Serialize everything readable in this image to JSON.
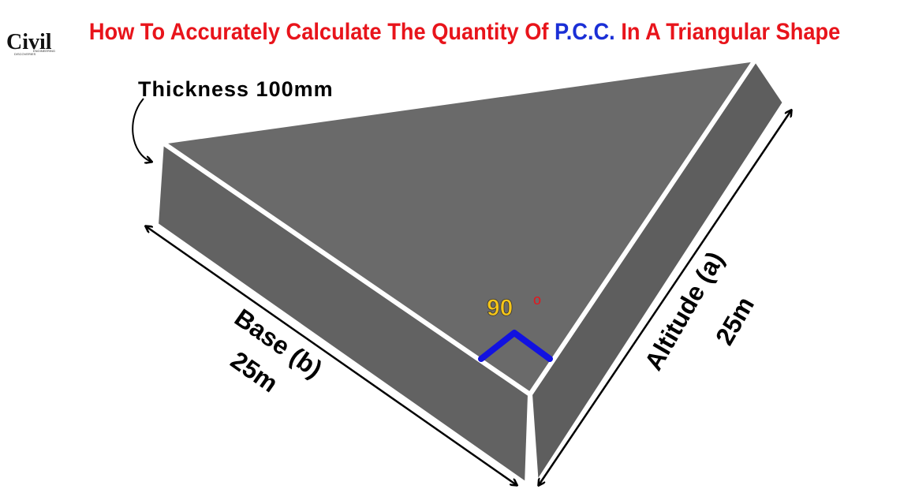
{
  "header": {
    "logo": {
      "main": "Civil",
      "line1": "ENGINEERING",
      "line2": "DISCOVERIES"
    },
    "title": {
      "before": "How To Accurately Calculate The Quantity Of ",
      "highlight": "P.C.C.",
      "after": " In A Triangular Shape"
    }
  },
  "diagram": {
    "thickness": "Thickness 100mm",
    "base": {
      "label": "Base (b)",
      "length": "25m"
    },
    "altitude": {
      "label": "Altitude (a)",
      "length": "25m"
    },
    "angle": {
      "value": "90",
      "unit": "o"
    }
  }
}
